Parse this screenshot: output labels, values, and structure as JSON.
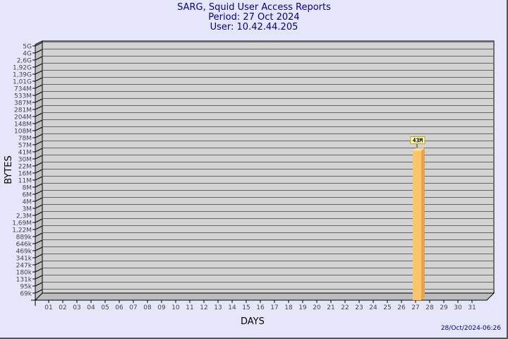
{
  "header": {
    "title": "SARG, Squid User Access Reports",
    "period": "Period: 27 Oct 2024",
    "user": "User: 10.42.44.205"
  },
  "footer": {
    "timestamp": "28/Oct/2024-06:26"
  },
  "chart_data": {
    "type": "bar",
    "title": "SARG, Squid User Access Reports",
    "xlabel": "DAYS",
    "ylabel": "BYTES",
    "y_scale": "log",
    "grid": true,
    "y_ticks": [
      "5G",
      "4G",
      "2,6G",
      "1,92G",
      "1,39G",
      "1,01G",
      "734M",
      "533M",
      "387M",
      "281M",
      "204M",
      "148M",
      "108M",
      "78M",
      "57M",
      "41M",
      "30M",
      "22M",
      "16M",
      "11M",
      "8M",
      "6M",
      "4M",
      "3M",
      "2,3M",
      "1,69M",
      "1,22M",
      "889k",
      "646k",
      "469k",
      "341k",
      "247k",
      "180k",
      "131k",
      "95k",
      "69k"
    ],
    "categories": [
      "01",
      "02",
      "03",
      "04",
      "05",
      "06",
      "07",
      "08",
      "09",
      "10",
      "11",
      "12",
      "13",
      "14",
      "15",
      "16",
      "17",
      "18",
      "19",
      "20",
      "21",
      "22",
      "23",
      "24",
      "25",
      "26",
      "27",
      "28",
      "29",
      "30",
      "31"
    ],
    "values": [
      null,
      null,
      null,
      null,
      null,
      null,
      null,
      null,
      null,
      null,
      null,
      null,
      null,
      null,
      null,
      null,
      null,
      null,
      null,
      null,
      null,
      null,
      null,
      null,
      null,
      null,
      43000000,
      null,
      null,
      null,
      null
    ],
    "data_labels": {
      "27": "43M"
    },
    "colors": {
      "bar_front": "#fdc46a",
      "bar_side": "#e0a54e",
      "bar_top": "#ffe08f",
      "wall": "#d3d3d3",
      "background": "#e6e6fa",
      "title": "#00008b"
    }
  }
}
